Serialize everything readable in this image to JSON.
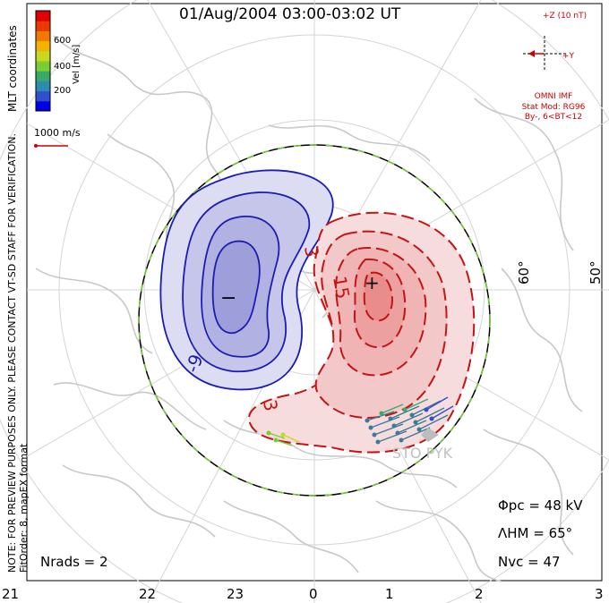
{
  "title": "01/Aug/2004 03:00-03:02 UT",
  "left_notes": {
    "coord_label": "MLT coordinates",
    "preview_note": "NOTE: FOR PREVIEW PURPOSES ONLY. PLEASE CONTACT VT-SD STAFF FOR VERIFICATION.",
    "fit_order": "FitOrder: 8, mapEX format"
  },
  "colorbar": {
    "label": "Vel [m/s]",
    "ticks": [
      "600",
      "400",
      "200"
    ],
    "colors": [
      "#0000e6",
      "#2f4fd0",
      "#2e8bb0",
      "#3aa86a",
      "#7acc33",
      "#c8d820",
      "#f2b300",
      "#f07a00",
      "#e83a00",
      "#e00000"
    ]
  },
  "velocity_scale": "1000 m/s",
  "imf": {
    "z_label": "+Z (10 nT)",
    "y_label": "+Y",
    "source": "OMNI IMF",
    "model": "Stat Mod: RG96",
    "conditions": "By-, 6<BT<12"
  },
  "contours": {
    "negative_label": "-9",
    "positive_label_top": "3",
    "positive_label_center": "15",
    "positive_label_bottom": "3",
    "min_marker": "−",
    "max_marker": "+"
  },
  "stations": "STO PYK",
  "latitude_labels": [
    "60°",
    "50°"
  ],
  "stats": {
    "phi_pc": "Φpc = 48 kV",
    "lambda_hm": "ΛHM = 65°",
    "n_vc": "Nvc = 47",
    "n_rads": "Nrads = 2"
  },
  "mlt_hours": [
    "21",
    "22",
    "23",
    "0",
    "1",
    "2",
    "3"
  ],
  "colors": {
    "negative": "#1c1cb4",
    "negative_fill": "#c8c8ec",
    "positive": "#c41414",
    "positive_fill": "#f4c4c4",
    "boundary_green": "#7acc33",
    "map_gray": "#c8c8c8",
    "imf_red": "#cc0000"
  }
}
